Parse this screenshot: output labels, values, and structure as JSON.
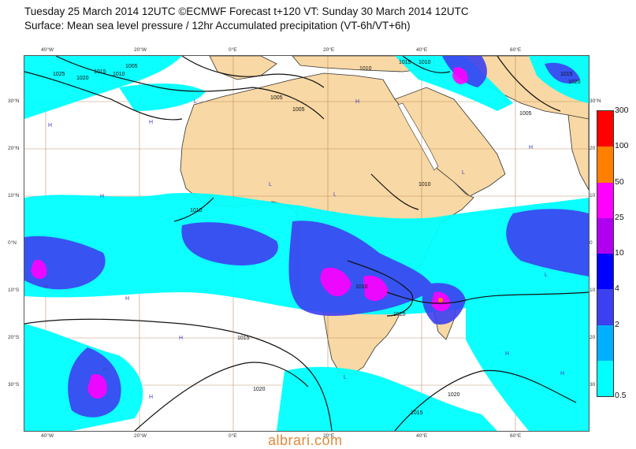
{
  "header": {
    "line1": "Tuesday 25 March 2014 12UTC ©ECMWF Forecast t+120 VT: Sunday 30 March 2014 12UTC",
    "line2": "Surface: Mean sea level pressure / 12hr Accumulated precipitation (VT-6h/VT+6h)"
  },
  "map": {
    "lat_ticks": [
      "30°N",
      "20°N",
      "10°N",
      "0°N",
      "10°S",
      "20°S",
      "30°S"
    ],
    "lat_ticks_right": [
      "30°N",
      "20",
      "10",
      "0",
      "10",
      "20",
      "30"
    ],
    "lon_ticks": [
      "40°W",
      "20°W",
      "0°E",
      "20°E",
      "40°E",
      "60°E"
    ],
    "isobar_labels": [
      "1005",
      "1010",
      "1015",
      "1020",
      "1025",
      "1005",
      "1005",
      "1010",
      "1015",
      "1010",
      "1015",
      "1020",
      "1005",
      "1010",
      "1010",
      "1010",
      "1015",
      "1020",
      "1010",
      "1020",
      "1015"
    ],
    "pressure_centres": [
      "H",
      "H",
      "H",
      "L",
      "L",
      "L",
      "L",
      "H",
      "H",
      "H",
      "H",
      "L",
      "H",
      "H",
      "L",
      "H",
      "H",
      "H"
    ],
    "colors": {
      "land": "#f8d8a4",
      "ocean": "#ffffff",
      "isobar": "#111111",
      "grid": "#b07a4a"
    }
  },
  "colorbar": {
    "labels": [
      "300",
      "100",
      "50",
      "25",
      "10",
      "4",
      "2",
      "0.5"
    ],
    "colors": [
      "#ff0000",
      "#ff8000",
      "#ff00ff",
      "#b000f0",
      "#0000ff",
      "#3c40f0",
      "#00b0ff",
      "#00ffff"
    ]
  },
  "watermark": "albrari.com"
}
